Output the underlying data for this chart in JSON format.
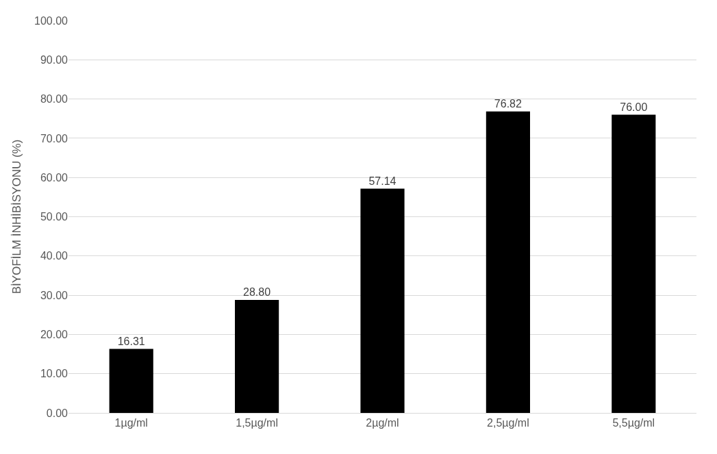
{
  "chart_data": {
    "type": "bar",
    "ylabel": "BİYOFİLM İNHİBİSYONU (%)",
    "categories": [
      "1µg/ml",
      "1,5µg/ml",
      "2µg/ml",
      "2,5µg/ml",
      "5,5µg/ml"
    ],
    "values": [
      16.31,
      28.8,
      57.14,
      76.82,
      76.0
    ],
    "value_labels": [
      "16.31",
      "28.80",
      "57.14",
      "76.82",
      "76.00"
    ],
    "color": "#000000",
    "ylim": [
      0,
      100
    ],
    "yticks": [
      {
        "value": 0,
        "label": "0.00"
      },
      {
        "value": 10,
        "label": "10.00"
      },
      {
        "value": 20,
        "label": "20.00"
      },
      {
        "value": 30,
        "label": "30.00"
      },
      {
        "value": 40,
        "label": "40.00"
      },
      {
        "value": 50,
        "label": "50.00"
      },
      {
        "value": 60,
        "label": "60.00"
      },
      {
        "value": 70,
        "label": "70.00"
      },
      {
        "value": 80,
        "label": "80.00"
      },
      {
        "value": 90,
        "label": "90.00"
      },
      {
        "value": 100,
        "label": "100.00"
      }
    ],
    "grid": "y"
  }
}
